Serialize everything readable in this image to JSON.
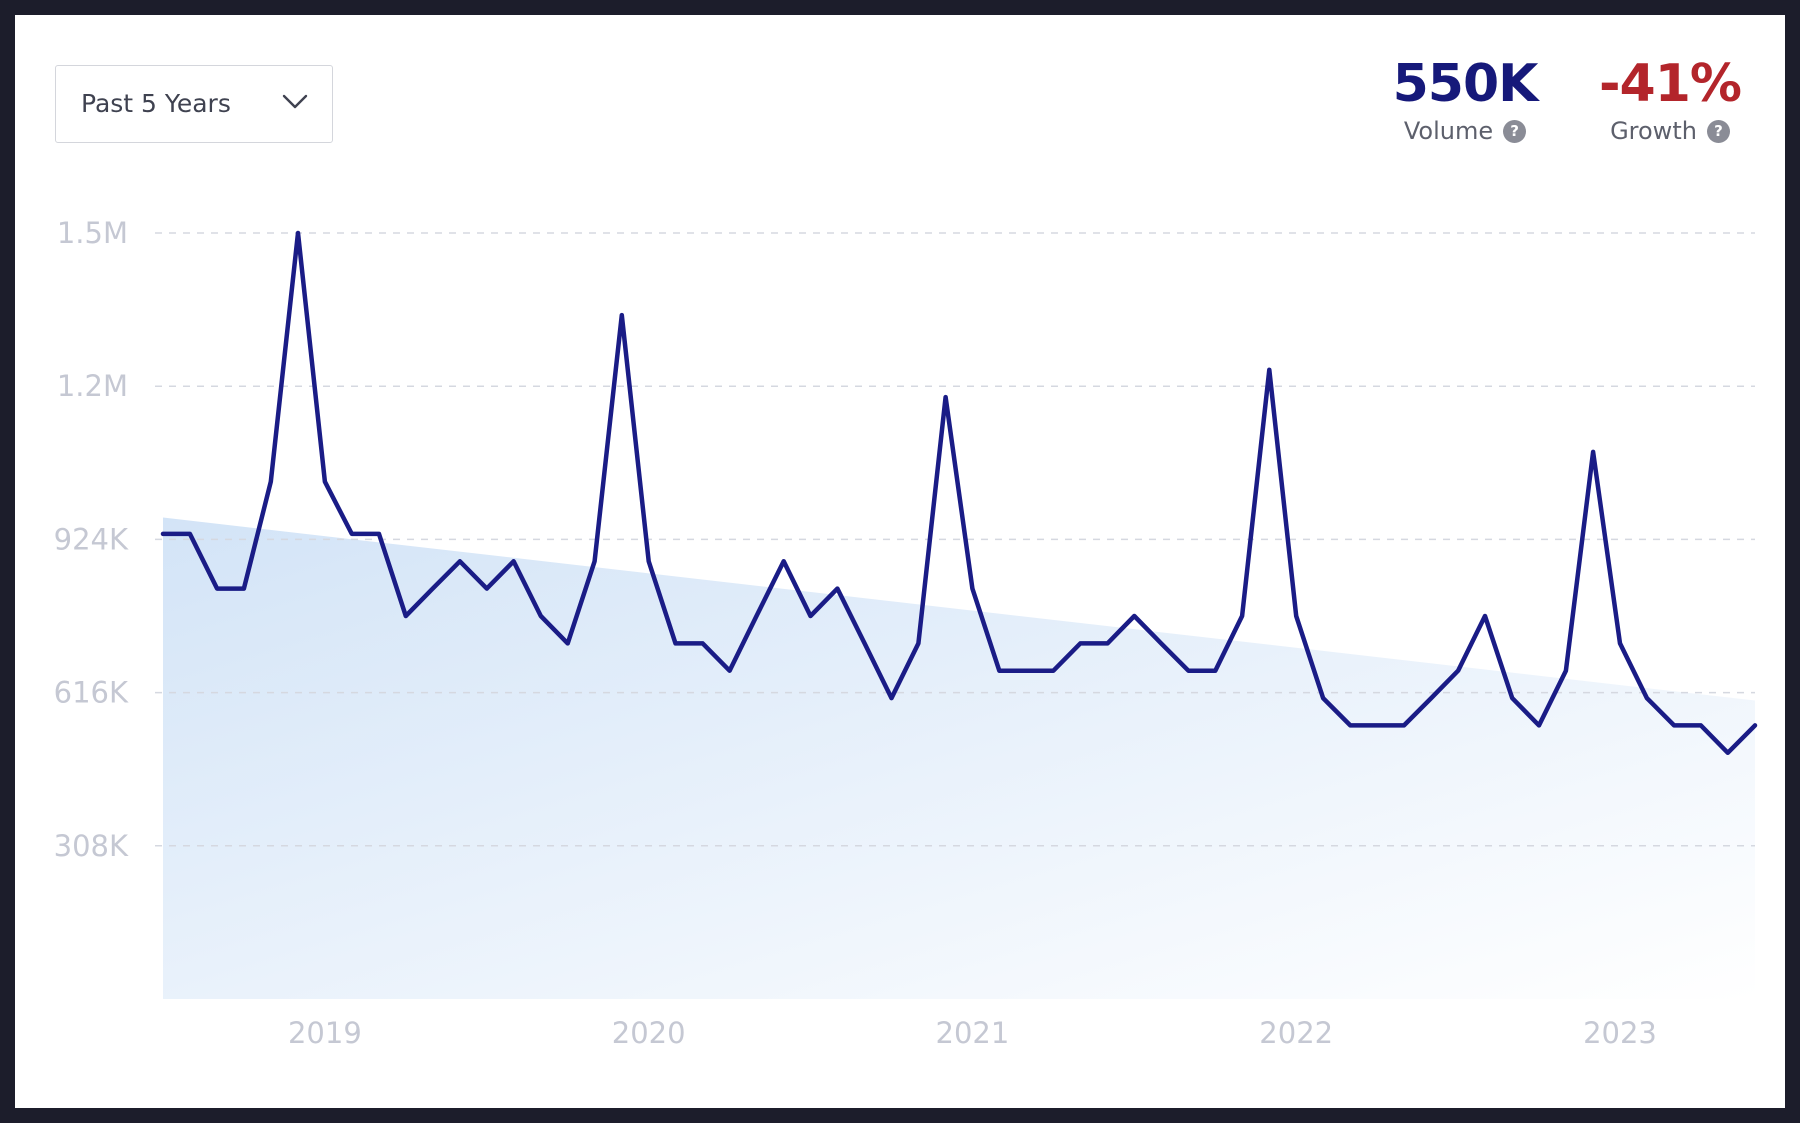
{
  "filter": {
    "selected": "Past 5 Years",
    "icon": "chevron-down-icon"
  },
  "stats": {
    "volume": {
      "value": "550K",
      "label": "Volume",
      "color": "#16197a"
    },
    "growth": {
      "value": "-41%",
      "label": "Growth",
      "color": "#b3252b"
    },
    "help_icon": "?"
  },
  "colors": {
    "line": "#1a1c86",
    "area_top": "#d3e4f7",
    "area_bottom": "#ffffff",
    "grid": "#d5d8e0",
    "tick_text": "#c5c8d3"
  },
  "chart_data": {
    "type": "line",
    "title": "",
    "xlabel": "",
    "ylabel": "",
    "ylim": [
      0,
      1540000
    ],
    "grid": true,
    "y_ticks": [
      {
        "value": 308000,
        "label": "308K"
      },
      {
        "value": 616000,
        "label": "616K"
      },
      {
        "value": 924000,
        "label": "924K"
      },
      {
        "value": 1232000,
        "label": "1.2M"
      },
      {
        "value": 1540000,
        "label": "1.5M"
      }
    ],
    "x_ticks": [
      {
        "value": 2019.0,
        "label": "2019"
      },
      {
        "value": 2020.0,
        "label": "2020"
      },
      {
        "value": 2021.0,
        "label": "2021"
      },
      {
        "value": 2022.0,
        "label": "2022"
      },
      {
        "value": 2023.0,
        "label": "2023"
      }
    ],
    "trend": {
      "start": 968000,
      "end": 600000
    },
    "series": [
      {
        "x": [
          2018.5,
          2018.583,
          2018.667,
          2018.75,
          2018.833,
          2018.917,
          2019.0,
          2019.083,
          2019.167,
          2019.25,
          2019.333,
          2019.417,
          2019.5,
          2019.583,
          2019.667,
          2019.75,
          2019.833,
          2019.917,
          2020.0,
          2020.083,
          2020.167,
          2020.25,
          2020.333,
          2020.417,
          2020.5,
          2020.583,
          2020.667,
          2020.75,
          2020.833,
          2020.917,
          2021.0,
          2021.083,
          2021.167,
          2021.25,
          2021.333,
          2021.417,
          2021.5,
          2021.583,
          2021.667,
          2021.75,
          2021.833,
          2021.917,
          2022.0,
          2022.083,
          2022.167,
          2022.25,
          2022.333,
          2022.417,
          2022.5,
          2022.583,
          2022.667,
          2022.75,
          2022.833,
          2022.917,
          2023.0,
          2023.083,
          2023.167,
          2023.25,
          2023.333,
          2023.417
        ],
        "values": [
          935000,
          935000,
          825000,
          825000,
          1040000,
          1540000,
          1040000,
          935000,
          935000,
          770000,
          825000,
          880000,
          825000,
          880000,
          770000,
          715000,
          880000,
          1375000,
          880000,
          715000,
          715000,
          660000,
          770000,
          880000,
          770000,
          825000,
          715000,
          605000,
          715000,
          1210000,
          825000,
          660000,
          660000,
          660000,
          715000,
          715000,
          770000,
          715000,
          660000,
          660000,
          770000,
          1265000,
          770000,
          605000,
          550000,
          550000,
          550000,
          605000,
          660000,
          770000,
          605000,
          550000,
          660000,
          1100000,
          715000,
          605000,
          550000,
          550000,
          495000,
          550000
        ]
      }
    ]
  }
}
